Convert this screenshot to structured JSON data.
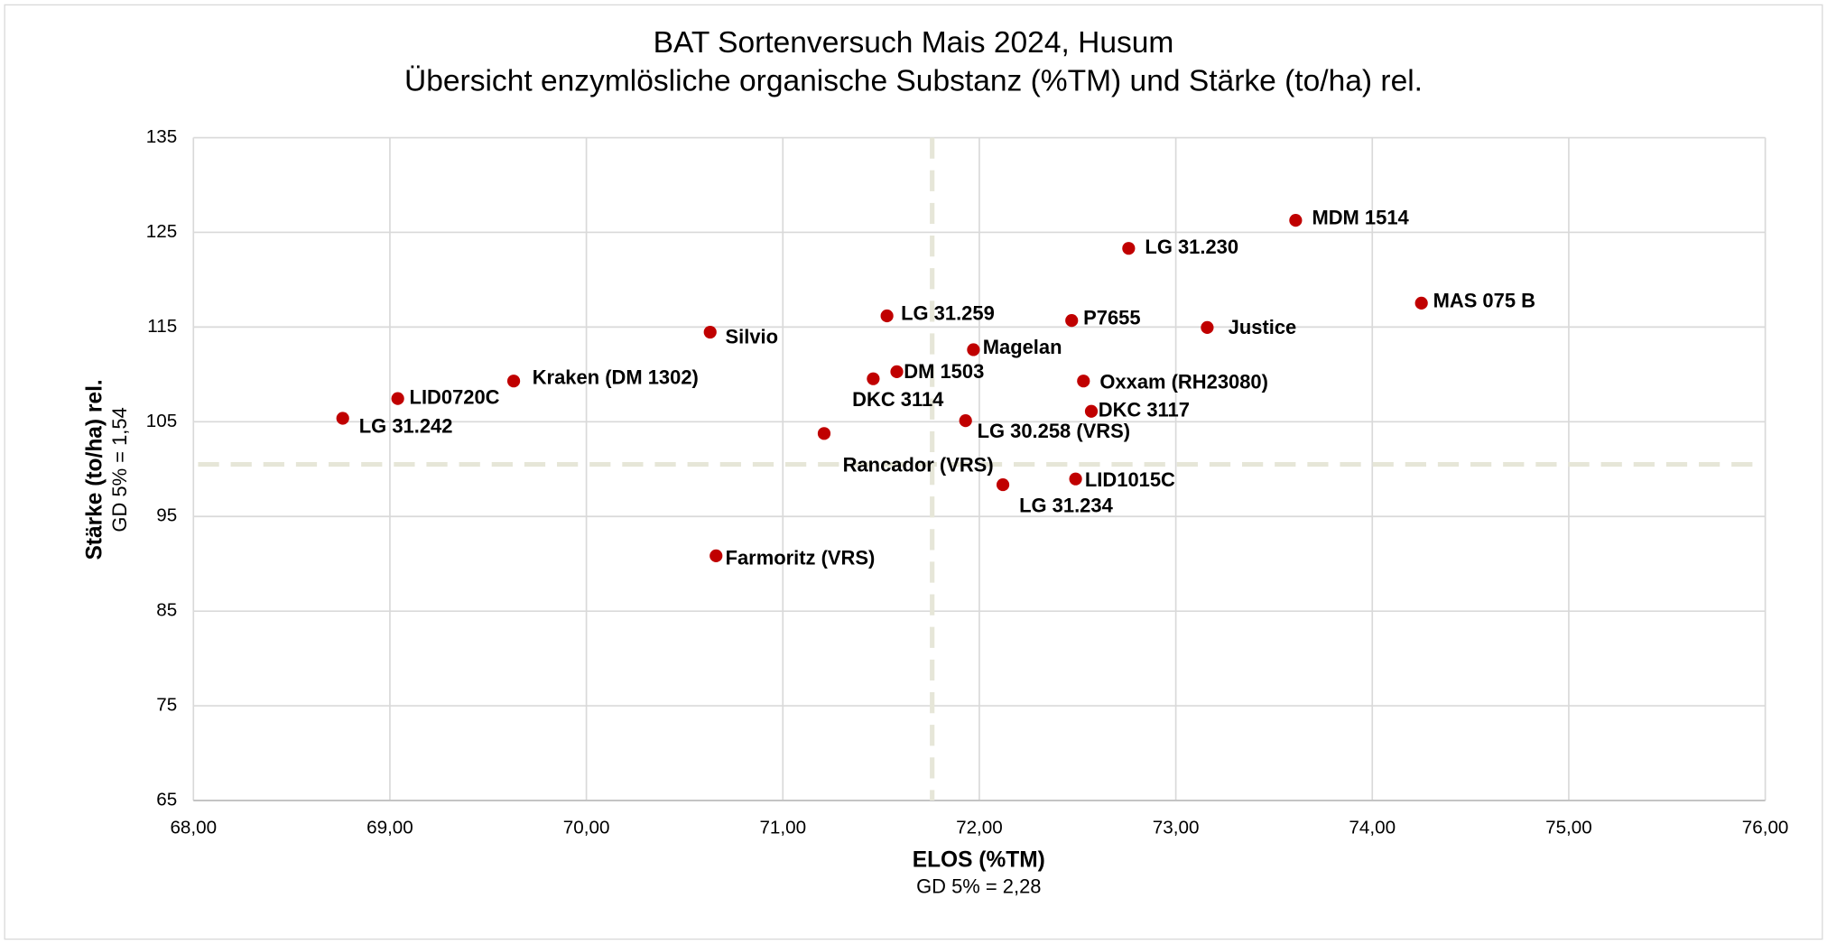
{
  "chart_data": {
    "type": "scatter",
    "title": "BAT Sortenversuch Mais 2024, Husum",
    "subtitle": "Übersicht enzymlösliche organische Substanz (%TM) und Stärke (to/ha) rel.",
    "x_label": "ELOS (%TM)",
    "x_note": "GD 5% = 2,28",
    "y_label": "Stärke (to/ha) rel.",
    "y_note": "GD 5% = 1,54",
    "color": "#c00000",
    "reference_color": "#e6e6d8",
    "reference_x": 71.76,
    "reference_y": 100.5,
    "grid": true,
    "xlim": [
      68,
      76
    ],
    "xticks": [
      {
        "value": 68,
        "label": "68,00"
      },
      {
        "value": 69,
        "label": "69,00"
      },
      {
        "value": 70,
        "label": "70,00"
      },
      {
        "value": 71,
        "label": "71,00"
      },
      {
        "value": 72,
        "label": "72,00"
      },
      {
        "value": 73,
        "label": "73,00"
      },
      {
        "value": 74,
        "label": "74,00"
      },
      {
        "value": 75,
        "label": "75,00"
      },
      {
        "value": 76,
        "label": "76,00"
      }
    ],
    "ylim": [
      65,
      135
    ],
    "yticks": [
      65,
      75,
      85,
      95,
      105,
      115,
      125,
      135
    ],
    "labels": [
      "LG 31.242",
      "LID0720C",
      "Kraken (DM 1302)",
      "Silvio",
      "Farmoritz (VRS)",
      "Rancador (VRS)",
      "DKC 3114",
      "DM 1503",
      "LG 31.259",
      "Magelan",
      "LG 30.258 (VRS)",
      "LG 31.234",
      "P7655",
      "LID1015C",
      "Oxxam (RH23080)",
      "DKC 3117",
      "LG 31.230",
      "Justice",
      "MDM 1514",
      "MAS 075 B"
    ],
    "x": [
      68.76,
      69.04,
      69.63,
      70.63,
      70.66,
      71.21,
      71.46,
      71.58,
      71.53,
      71.97,
      71.93,
      72.12,
      72.47,
      72.49,
      72.53,
      72.57,
      72.76,
      73.16,
      73.61,
      74.25
    ],
    "values": [
      105.36,
      107.45,
      109.3,
      114.46,
      90.84,
      103.76,
      109.54,
      110.28,
      116.18,
      112.61,
      105.11,
      98.35,
      115.69,
      98.96,
      109.3,
      106.1,
      123.31,
      114.95,
      126.27,
      117.53
    ]
  }
}
